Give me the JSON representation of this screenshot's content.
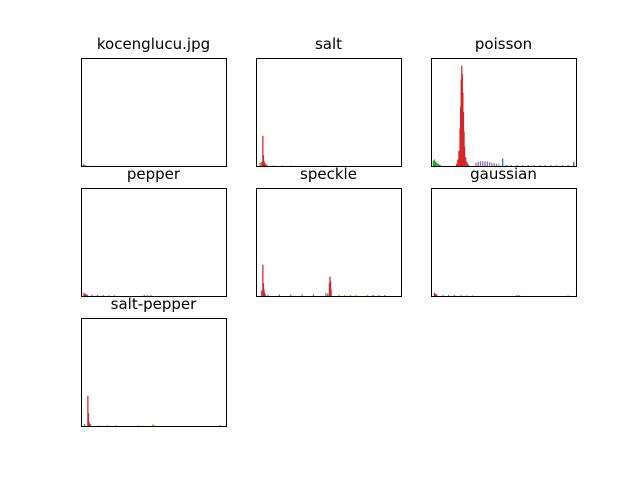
{
  "chart_data": [
    {
      "type": "histogram",
      "title": "kocenglucu.jpg",
      "xlim": [
        0,
        255
      ],
      "ylim": [
        0,
        100
      ],
      "series": [
        {
          "color": "#d62728",
          "bins": [
            [
              3,
              1.5
            ],
            [
              4,
              1.0
            ],
            [
              6,
              0.6
            ],
            [
              8,
              0.4
            ]
          ]
        },
        {
          "color": "#2ca02c",
          "bins": [
            [
              5,
              0.5
            ],
            [
              9,
              0.3
            ]
          ]
        }
      ]
    },
    {
      "type": "histogram",
      "title": "salt",
      "xlim": [
        0,
        255
      ],
      "ylim": [
        0,
        100
      ],
      "series": [
        {
          "color": "#2ca02c",
          "bins": [
            [
              6,
              3
            ],
            [
              10,
              2
            ],
            [
              45,
              0.6
            ],
            [
              120,
              0.4
            ]
          ]
        },
        {
          "color": "#9467bd",
          "bins": [
            [
              14,
              1
            ],
            [
              30,
              0.6
            ],
            [
              60,
              0.4
            ]
          ]
        },
        {
          "color": "#d62728",
          "bins": [
            [
              9,
              4
            ],
            [
              11,
              28
            ],
            [
              12,
              10
            ],
            [
              13,
              5
            ],
            [
              14,
              3
            ],
            [
              16,
              2
            ],
            [
              18,
              1
            ]
          ]
        }
      ]
    },
    {
      "type": "histogram",
      "title": "poisson",
      "xlim": [
        0,
        255
      ],
      "ylim": [
        0,
        100
      ],
      "series": [
        {
          "color": "#2ca02c",
          "bins": [
            [
              3,
              5
            ],
            [
              5,
              6
            ],
            [
              7,
              4
            ],
            [
              9,
              3
            ],
            [
              11,
              2
            ],
            [
              13,
              1.5
            ],
            [
              15,
              1
            ]
          ]
        },
        {
          "color": "#9467bd",
          "bins": [
            [
              78,
              3
            ],
            [
              82,
              4
            ],
            [
              86,
              4.5
            ],
            [
              90,
              4.5
            ],
            [
              94,
              4
            ],
            [
              98,
              4
            ],
            [
              102,
              3.5
            ],
            [
              106,
              3
            ],
            [
              110,
              2.5
            ],
            [
              114,
              2
            ],
            [
              118,
              1.5
            ],
            [
              124,
              1
            ],
            [
              132,
              1
            ],
            [
              140,
              1
            ],
            [
              150,
              1
            ],
            [
              160,
              1
            ],
            [
              170,
              1
            ],
            [
              180,
              1
            ],
            [
              190,
              1
            ],
            [
              200,
              1
            ],
            [
              210,
              1
            ],
            [
              220,
              1
            ],
            [
              230,
              1
            ],
            [
              240,
              1
            ],
            [
              250,
              4
            ]
          ]
        },
        {
          "color": "#1f77b4",
          "bins": [
            [
              125,
              7
            ],
            [
              250,
              3
            ]
          ]
        },
        {
          "color": "#d62728",
          "bins": [
            [
              44,
              2
            ],
            [
              46,
              6
            ],
            [
              48,
              14
            ],
            [
              50,
              35
            ],
            [
              51,
              55
            ],
            [
              52,
              80
            ],
            [
              53,
              93
            ],
            [
              54,
              85
            ],
            [
              55,
              68
            ],
            [
              56,
              50
            ],
            [
              57,
              32
            ],
            [
              58,
              18
            ],
            [
              60,
              8
            ],
            [
              62,
              4
            ],
            [
              64,
              2
            ]
          ]
        }
      ]
    },
    {
      "type": "histogram",
      "title": "pepper",
      "xlim": [
        0,
        255
      ],
      "ylim": [
        0,
        100
      ],
      "series": [
        {
          "color": "#9467bd",
          "bins": [
            [
              18,
              1.2
            ],
            [
              28,
              1.0
            ],
            [
              38,
              1.0
            ],
            [
              48,
              0.8
            ],
            [
              58,
              0.7
            ]
          ]
        },
        {
          "color": "#2ca02c",
          "bins": [
            [
              110,
              0.8
            ],
            [
              116,
              0.8
            ],
            [
              122,
              0.7
            ]
          ]
        },
        {
          "color": "#d62728",
          "bins": [
            [
              4,
              3
            ],
            [
              6,
              2
            ],
            [
              8,
              1.5
            ],
            [
              10,
              1
            ]
          ]
        }
      ]
    },
    {
      "type": "histogram",
      "title": "speckle",
      "xlim": [
        0,
        255
      ],
      "ylim": [
        0,
        100
      ],
      "series": [
        {
          "color": "#ff7f0e",
          "bins": [
            [
              145,
              1
            ],
            [
              155,
              1
            ],
            [
              165,
              1
            ],
            [
              175,
              1
            ],
            [
              195,
              1
            ]
          ]
        },
        {
          "color": "#1f77b4",
          "bins": [
            [
              205,
              1
            ],
            [
              215,
              0.8
            ],
            [
              225,
              0.8
            ]
          ]
        },
        {
          "color": "#2ca02c",
          "bins": [
            [
              125,
              2
            ],
            [
              128,
              3
            ]
          ]
        },
        {
          "color": "#9467bd",
          "bins": [
            [
              20,
              1.5
            ],
            [
              40,
              1.5
            ],
            [
              60,
              1.5
            ],
            [
              80,
              1.5
            ],
            [
              100,
              1.5
            ],
            [
              122,
              3
            ]
          ]
        },
        {
          "color": "#d62728",
          "bins": [
            [
              9,
              5
            ],
            [
              11,
              29
            ],
            [
              12,
              12
            ],
            [
              13,
              6
            ],
            [
              14,
              3
            ],
            [
              15,
              2
            ],
            [
              128,
              12
            ],
            [
              129,
              18
            ],
            [
              130,
              14
            ],
            [
              131,
              6
            ]
          ]
        }
      ]
    },
    {
      "type": "histogram",
      "title": "gaussian",
      "xlim": [
        0,
        255
      ],
      "ylim": [
        0,
        100
      ],
      "series": [
        {
          "color": "#d62728",
          "bins": [
            [
              5,
              3
            ],
            [
              7,
              2
            ],
            [
              9,
              1.5
            ]
          ]
        },
        {
          "color": "#9467bd",
          "bins": [
            [
              20,
              1
            ],
            [
              30,
              1
            ],
            [
              40,
              1
            ],
            [
              52,
              0.8
            ],
            [
              62,
              0.6
            ],
            [
              72,
              0.5
            ]
          ]
        },
        {
          "color": "#2ca02c",
          "bins": [
            [
              150,
              1
            ],
            [
              154,
              0.8
            ]
          ]
        },
        {
          "color": "#ff7f0e",
          "bins": [
            [
              240,
              0.8
            ]
          ]
        }
      ]
    },
    {
      "type": "histogram",
      "title": "salt-pepper",
      "xlim": [
        0,
        255
      ],
      "ylim": [
        0,
        100
      ],
      "series": [
        {
          "color": "#2ca02c",
          "bins": [
            [
              5,
              2
            ],
            [
              45,
              0.8
            ]
          ]
        },
        {
          "color": "#9467bd",
          "bins": [
            [
              30,
              0.6
            ],
            [
              60,
              0.6
            ],
            [
              100,
              0.6
            ]
          ]
        },
        {
          "color": "#ff7f0e",
          "bins": [
            [
              125,
              1.5
            ],
            [
              127,
              1
            ]
          ]
        },
        {
          "color": "#7f7f7f",
          "bins": [
            [
              244,
              1
            ]
          ]
        },
        {
          "color": "#d62728",
          "bins": [
            [
              11,
              28
            ],
            [
              12,
              12
            ],
            [
              13,
              4
            ],
            [
              15,
              2
            ]
          ]
        }
      ]
    }
  ]
}
